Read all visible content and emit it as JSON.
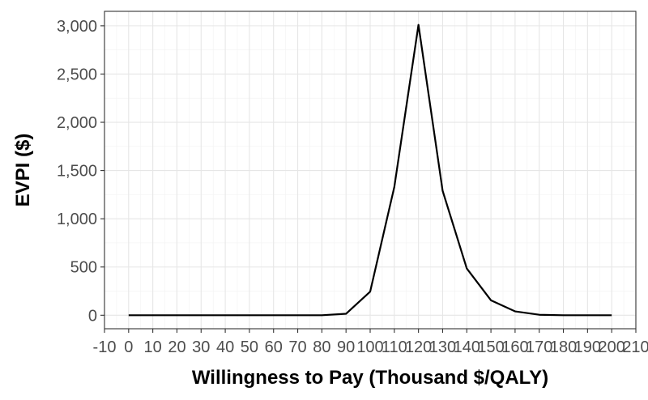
{
  "chart_data": {
    "type": "line",
    "title": "",
    "xlabel": "Willingness to Pay (Thousand $/QALY)",
    "ylabel": "EVPI ($)",
    "xlim": [
      -10,
      210
    ],
    "ylim": [
      -140,
      3150
    ],
    "grid": true,
    "x_ticks": [
      -10,
      0,
      10,
      20,
      30,
      40,
      50,
      60,
      70,
      80,
      90,
      100,
      110,
      120,
      130,
      140,
      150,
      160,
      170,
      180,
      190,
      200,
      210
    ],
    "x_tick_labels": [
      "-10",
      "0",
      "10",
      "20",
      "30",
      "40",
      "50",
      "60",
      "70",
      "80",
      "90",
      "100",
      "110",
      "120",
      "130",
      "140",
      "150",
      "160",
      "170",
      "180",
      "190",
      "200",
      "210"
    ],
    "y_ticks": [
      0,
      500,
      1000,
      1500,
      2000,
      2500,
      3000
    ],
    "y_tick_labels": [
      "0",
      "500",
      "1,000",
      "1,500",
      "2,000",
      "2,500",
      "3,000"
    ],
    "series": [
      {
        "name": "EVPI",
        "color": "#000000",
        "x": [
          0,
          10,
          20,
          30,
          40,
          50,
          60,
          70,
          80,
          90,
          100,
          110,
          120,
          130,
          140,
          150,
          160,
          170,
          180,
          190,
          200
        ],
        "values": [
          0,
          0,
          0,
          0,
          0,
          0,
          0,
          0,
          0,
          15,
          245,
          1330,
          3010,
          1290,
          485,
          155,
          40,
          5,
          0,
          0,
          0
        ]
      }
    ]
  }
}
